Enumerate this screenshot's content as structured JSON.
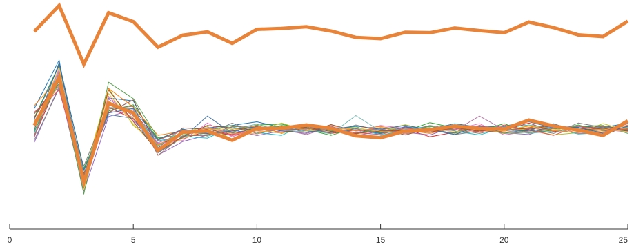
{
  "chart_data": {
    "type": "line",
    "title": "",
    "xlabel": "",
    "ylabel": "",
    "xlim": [
      0,
      25
    ],
    "ylim": [
      0,
      1
    ],
    "grid": false,
    "legend": "none",
    "x_ticks": [
      0,
      5,
      10,
      15,
      20,
      25
    ],
    "x_tick_labels": [
      "0",
      "5",
      "10",
      "15",
      "20",
      "25"
    ],
    "x": [
      1,
      2,
      3,
      4,
      5,
      6,
      7,
      8,
      9,
      10,
      11,
      12,
      13,
      14,
      15,
      16,
      17,
      18,
      19,
      20,
      21,
      22,
      23,
      24,
      25
    ],
    "highlight_color": "#E8833A",
    "thin_colors": [
      "#1f77b4",
      "#d62728",
      "#2ca02c",
      "#9467bd",
      "#bcbd22",
      "#17becf",
      "#8c564b",
      "#e377c2",
      "#7f7f7f",
      "#ff7f0e",
      "#4e79a7",
      "#59a14f",
      "#76b7b2",
      "#b07aa1",
      "#e15759",
      "#edc948",
      "#9c755f",
      "#f28e2b",
      "#3a6ea5",
      "#a0522d",
      "#6b8e23",
      "#800080",
      "#2e8b57",
      "#c71585",
      "#008b8b",
      "#b8860b",
      "#483d8b",
      "#cd5c5c",
      "#20b2aa",
      "#8b0000"
    ],
    "series_highlight": [
      {
        "values": [
          0.878,
          1.0,
          0.724,
          0.966,
          0.924,
          0.804,
          0.86,
          0.876,
          0.822,
          0.888,
          0.892,
          0.9,
          0.88,
          0.85,
          0.844,
          0.874,
          0.872,
          0.894,
          0.882,
          0.872,
          0.922,
          0.896,
          0.862,
          0.854,
          0.926
        ]
      },
      {
        "values": [
          0.436,
          0.664,
          0.169,
          0.539,
          0.495,
          0.318,
          0.404,
          0.409,
          0.366,
          0.422,
          0.422,
          0.438,
          0.422,
          0.387,
          0.378,
          0.409,
          0.415,
          0.433,
          0.422,
          0.419,
          0.461,
          0.433,
          0.413,
          0.389,
          0.457
        ]
      }
    ],
    "series_thin": [
      {
        "values": [
          0.516,
          0.743,
          0.139,
          0.565,
          0.551,
          0.341,
          0.397,
          0.424,
          0.436,
          0.453,
          0.426,
          0.431,
          0.409,
          0.413,
          0.397,
          0.428,
          0.419,
          0.444,
          0.428,
          0.433,
          0.453,
          0.424,
          0.433,
          0.426,
          0.447
        ]
      },
      {
        "values": [
          0.384,
          0.654,
          0.182,
          0.522,
          0.466,
          0.35,
          0.373,
          0.409,
          0.389,
          0.411,
          0.4,
          0.426,
          0.398,
          0.415,
          0.402,
          0.42,
          0.382,
          0.404,
          0.436,
          0.413,
          0.447,
          0.406,
          0.424,
          0.431,
          0.42
        ]
      },
      {
        "values": [
          0.473,
          0.721,
          0.233,
          0.504,
          0.533,
          0.372,
          0.415,
          0.395,
          0.404,
          0.438,
          0.442,
          0.417,
          0.389,
          0.426,
          0.4,
          0.409,
          0.449,
          0.424,
          0.411,
          0.444,
          0.402,
          0.413,
          0.438,
          0.409,
          0.426
        ]
      },
      {
        "values": [
          0.357,
          0.62,
          0.126,
          0.478,
          0.509,
          0.296,
          0.36,
          0.391,
          0.416,
          0.388,
          0.411,
          0.398,
          0.433,
          0.387,
          0.409,
          0.404,
          0.391,
          0.431,
          0.416,
          0.402,
          0.393,
          0.431,
          0.409,
          0.413,
          0.436
        ]
      },
      {
        "values": [
          0.442,
          0.678,
          0.195,
          0.611,
          0.436,
          0.342,
          0.404,
          0.431,
          0.371,
          0.411,
          0.447,
          0.411,
          0.422,
          0.396,
          0.415,
          0.439,
          0.413,
          0.398,
          0.426,
          0.42,
          0.415,
          0.391,
          0.402,
          0.444,
          0.411
        ]
      },
      {
        "values": [
          0.402,
          0.7,
          0.162,
          0.543,
          0.489,
          0.363,
          0.385,
          0.376,
          0.429,
          0.402,
          0.389,
          0.444,
          0.411,
          0.431,
          0.389,
          0.415,
          0.433,
          0.409,
          0.391,
          0.426,
          0.438,
          0.422,
          0.395,
          0.402,
          0.453
        ]
      },
      {
        "values": [
          0.491,
          0.632,
          0.21,
          0.496,
          0.556,
          0.33,
          0.424,
          0.418,
          0.393,
          0.427,
          0.431,
          0.402,
          0.44,
          0.409,
          0.42,
          0.391,
          0.422,
          0.438,
          0.404,
          0.409,
          0.426,
          0.44,
          0.418,
          0.391,
          0.431
        ]
      },
      {
        "values": [
          0.431,
          0.698,
          0.148,
          0.573,
          0.458,
          0.351,
          0.365,
          0.447,
          0.382,
          0.424,
          0.404,
          0.42,
          0.426,
          0.4,
          0.436,
          0.422,
          0.404,
          0.417,
          0.444,
          0.391,
          0.409,
          0.426,
          0.431,
          0.418,
          0.404
        ]
      },
      {
        "values": [
          0.368,
          0.611,
          0.244,
          0.532,
          0.498,
          0.318,
          0.404,
          0.396,
          0.447,
          0.396,
          0.42,
          0.413,
          0.402,
          0.438,
          0.411,
          0.402,
          0.426,
          0.393,
          0.409,
          0.431,
          0.42,
          0.398,
          0.447,
          0.426,
          0.422
        ]
      },
      {
        "values": [
          0.529,
          0.66,
          0.174,
          0.61,
          0.522,
          0.389,
          0.409,
          0.402,
          0.411,
          0.436,
          0.398,
          0.431,
          0.418,
          0.42,
          0.431,
          0.413,
          0.398,
          0.426,
          0.411,
          0.409,
          0.433,
          0.413,
          0.42,
          0.404,
          0.438
        ]
      },
      {
        "values": [
          0.466,
          0.718,
          0.198,
          0.487,
          0.469,
          0.307,
          0.378,
          0.48,
          0.4,
          0.42,
          0.426,
          0.409,
          0.404,
          0.42,
          0.398,
          0.431,
          0.413,
          0.4,
          0.431,
          0.402,
          0.413,
          0.444,
          0.406,
          0.418,
          0.411
        ]
      },
      {
        "values": [
          0.409,
          0.645,
          0.113,
          0.639,
          0.562,
          0.378,
          0.391,
          0.413,
          0.436,
          0.415,
          0.436,
          0.424,
          0.411,
          0.395,
          0.426,
          0.409,
          0.431,
          0.413,
          0.422,
          0.398,
          0.404,
          0.42,
          0.431,
          0.436,
          0.398
        ]
      },
      {
        "values": [
          0.449,
          0.63,
          0.221,
          0.521,
          0.513,
          0.337,
          0.42,
          0.385,
          0.418,
          0.442,
          0.409,
          0.417,
          0.396,
          0.482,
          0.409,
          0.42,
          0.402,
          0.44,
          0.415,
          0.422,
          0.398,
          0.409,
          0.424,
          0.411,
          0.427
        ]
      },
      {
        "values": [
          0.38,
          0.69,
          0.154,
          0.56,
          0.48,
          0.354,
          0.396,
          0.426,
          0.404,
          0.404,
          0.418,
          0.393,
          0.429,
          0.411,
          0.42,
          0.396,
          0.418,
          0.411,
          0.48,
          0.415,
          0.422,
          0.431,
          0.398,
          0.402,
          0.444
        ]
      },
      {
        "values": [
          0.498,
          0.602,
          0.188,
          0.499,
          0.499,
          0.366,
          0.413,
          0.409,
          0.393,
          0.418,
          0.427,
          0.436,
          0.42,
          0.402,
          0.393,
          0.424,
          0.409,
          0.422,
          0.404,
          0.438,
          0.415,
          0.389,
          0.433,
          0.413,
          0.418
        ]
      },
      {
        "values": [
          0.424,
          0.709,
          0.132,
          0.586,
          0.443,
          0.322,
          0.374,
          0.416,
          0.42,
          0.409,
          0.402,
          0.409,
          0.413,
          0.426,
          0.404,
          0.415,
          0.424,
          0.404,
          0.426,
          0.411,
          0.436,
          0.418,
          0.411,
          0.42,
          0.406
        ]
      },
      {
        "values": [
          0.391,
          0.676,
          0.205,
          0.513,
          0.526,
          0.295,
          0.387,
          0.389,
          0.431,
          0.427,
          0.416,
          0.422,
          0.402,
          0.413,
          0.413,
          0.406,
          0.436,
          0.416,
          0.398,
          0.424,
          0.402,
          0.422,
          0.418,
          0.431,
          0.416
        ]
      },
      {
        "values": [
          0.458,
          0.624,
          0.17,
          0.551,
          0.471,
          0.345,
          0.402,
          0.422,
          0.398,
          0.396,
          0.433,
          0.415,
          0.436,
          0.409,
          0.426,
          0.4,
          0.409,
          0.431,
          0.418,
          0.402,
          0.426,
          0.411,
          0.402,
          0.415,
          0.422
        ]
      },
      {
        "values": [
          0.416,
          0.731,
          0.226,
          0.494,
          0.516,
          0.369,
          0.418,
          0.398,
          0.409,
          0.431,
          0.409,
          0.404,
          0.418,
          0.433,
          0.418,
          0.436,
          0.416,
          0.393,
          0.433,
          0.416,
          0.409,
          0.426,
          0.427,
          0.398,
          0.433
        ]
      },
      {
        "values": [
          0.473,
          0.662,
          0.151,
          0.603,
          0.454,
          0.311,
          0.382,
          0.436,
          0.424,
          0.413,
          0.422,
          0.427,
          0.407,
          0.398,
          0.409,
          0.411,
          0.404,
          0.426,
          0.409,
          0.427,
          0.418,
          0.436,
          0.413,
          0.422,
          0.409
        ]
      }
    ]
  }
}
